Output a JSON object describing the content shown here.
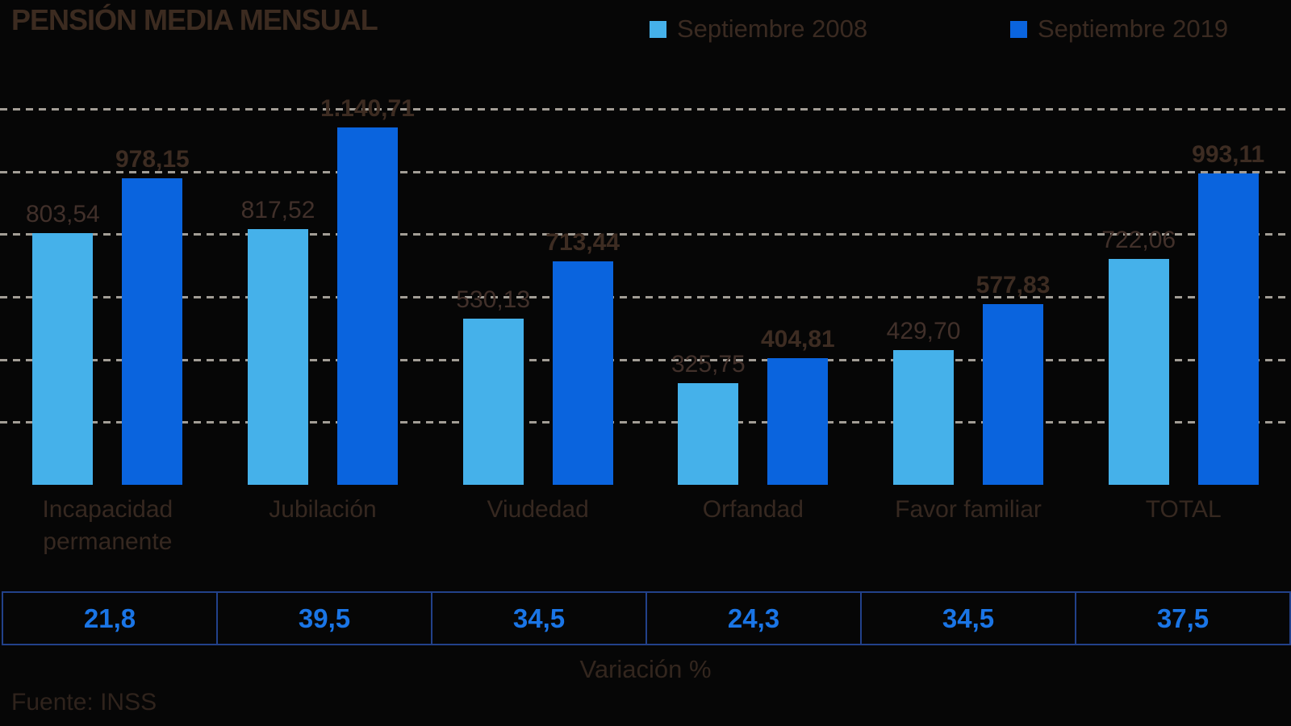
{
  "title": "PENSIÓN MEDIA MENSUAL",
  "source": "Fuente: INSS",
  "variation_label": "Variación %",
  "colors": {
    "background": "#060606",
    "bar_2008": "#45b1ea",
    "bar_2019": "#0a64de",
    "grid": "#a29d95",
    "table_value": "#1a75e6",
    "table_border": "#22418a",
    "title_text": "#3c2b20",
    "muted_text": "#3a2a21"
  },
  "chart_data": {
    "type": "bar",
    "title": "PENSIÓN MEDIA MENSUAL",
    "categories": [
      "Incapacidad permanente",
      "Jubilación",
      "Viudedad",
      "Orfandad",
      "Favor familiar",
      "TOTAL"
    ],
    "series": [
      {
        "name": "Septiembre 2008",
        "color": "#45b1ea",
        "values": [
          803.54,
          817.52,
          530.13,
          325.75,
          429.7,
          722.06
        ],
        "value_labels": [
          "803,54",
          "817,52",
          "530,13",
          "325,75",
          "429,70",
          "722,06"
        ]
      },
      {
        "name": "Septiembre 2019",
        "color": "#0a64de",
        "values": [
          978.15,
          1140.71,
          713.44,
          404.81,
          577.83,
          993.11
        ],
        "value_labels": [
          "978,15",
          "1.140,71",
          "713,44",
          "404,81",
          "577,83",
          "993,11"
        ]
      }
    ],
    "variation_percent": [
      "21,8",
      "39,5",
      "34,5",
      "24,3",
      "34,5",
      "37,5"
    ],
    "ylim": [
      0,
      1200
    ],
    "gridline_values": [
      200,
      400,
      600,
      800,
      1000,
      1200
    ],
    "grid_style": "dashed horizontal lines, no axis tick labels",
    "legend_position": "top-right",
    "xlabel": "Variación %",
    "ylabel": ""
  }
}
